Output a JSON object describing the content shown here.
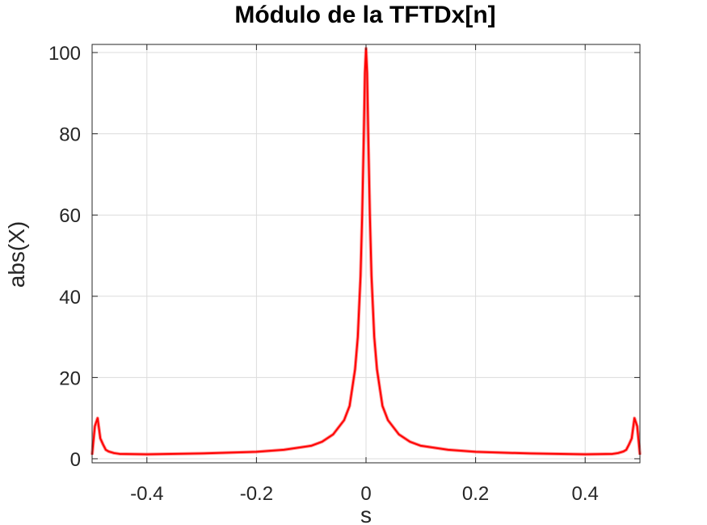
{
  "chart_data": {
    "type": "line",
    "title": "Módulo de la TFTDx[n]",
    "xlabel": "s",
    "ylabel": "abs(X)",
    "xlim": [
      -0.5,
      0.5
    ],
    "ylim": [
      -1,
      102
    ],
    "grid": true,
    "xticks": [
      -0.4,
      -0.2,
      0,
      0.2,
      0.4
    ],
    "xtick_labels": [
      "-0.4",
      "-0.2",
      "0",
      "0.2",
      "0.4"
    ],
    "yticks": [
      0,
      20,
      40,
      60,
      80,
      100
    ],
    "ytick_labels": [
      "0",
      "20",
      "40",
      "60",
      "80",
      "100"
    ],
    "series": [
      {
        "name": "abs(X)",
        "color": "#ff0000",
        "x": [
          -0.5,
          -0.495,
          -0.49,
          -0.485,
          -0.48,
          -0.475,
          -0.47,
          -0.46,
          -0.45,
          -0.4,
          -0.3,
          -0.2,
          -0.15,
          -0.1,
          -0.08,
          -0.06,
          -0.04,
          -0.03,
          -0.02,
          -0.015,
          -0.01,
          -0.007,
          -0.004,
          -0.002,
          0,
          0.002,
          0.004,
          0.007,
          0.01,
          0.015,
          0.02,
          0.03,
          0.04,
          0.06,
          0.08,
          0.1,
          0.15,
          0.2,
          0.3,
          0.4,
          0.45,
          0.46,
          0.47,
          0.475,
          0.48,
          0.485,
          0.49,
          0.495,
          0.5
        ],
        "values": [
          1,
          8,
          10,
          5,
          3.5,
          2.2,
          1.8,
          1.4,
          1.2,
          1.1,
          1.3,
          1.7,
          2.2,
          3.2,
          4.2,
          6,
          9.5,
          13,
          22,
          30,
          45,
          60,
          80,
          95,
          101,
          95,
          80,
          60,
          45,
          30,
          22,
          13,
          9.5,
          6,
          4.2,
          3.2,
          2.2,
          1.7,
          1.3,
          1.1,
          1.2,
          1.4,
          1.8,
          2.2,
          3.5,
          5,
          10,
          8,
          1
        ]
      }
    ]
  }
}
